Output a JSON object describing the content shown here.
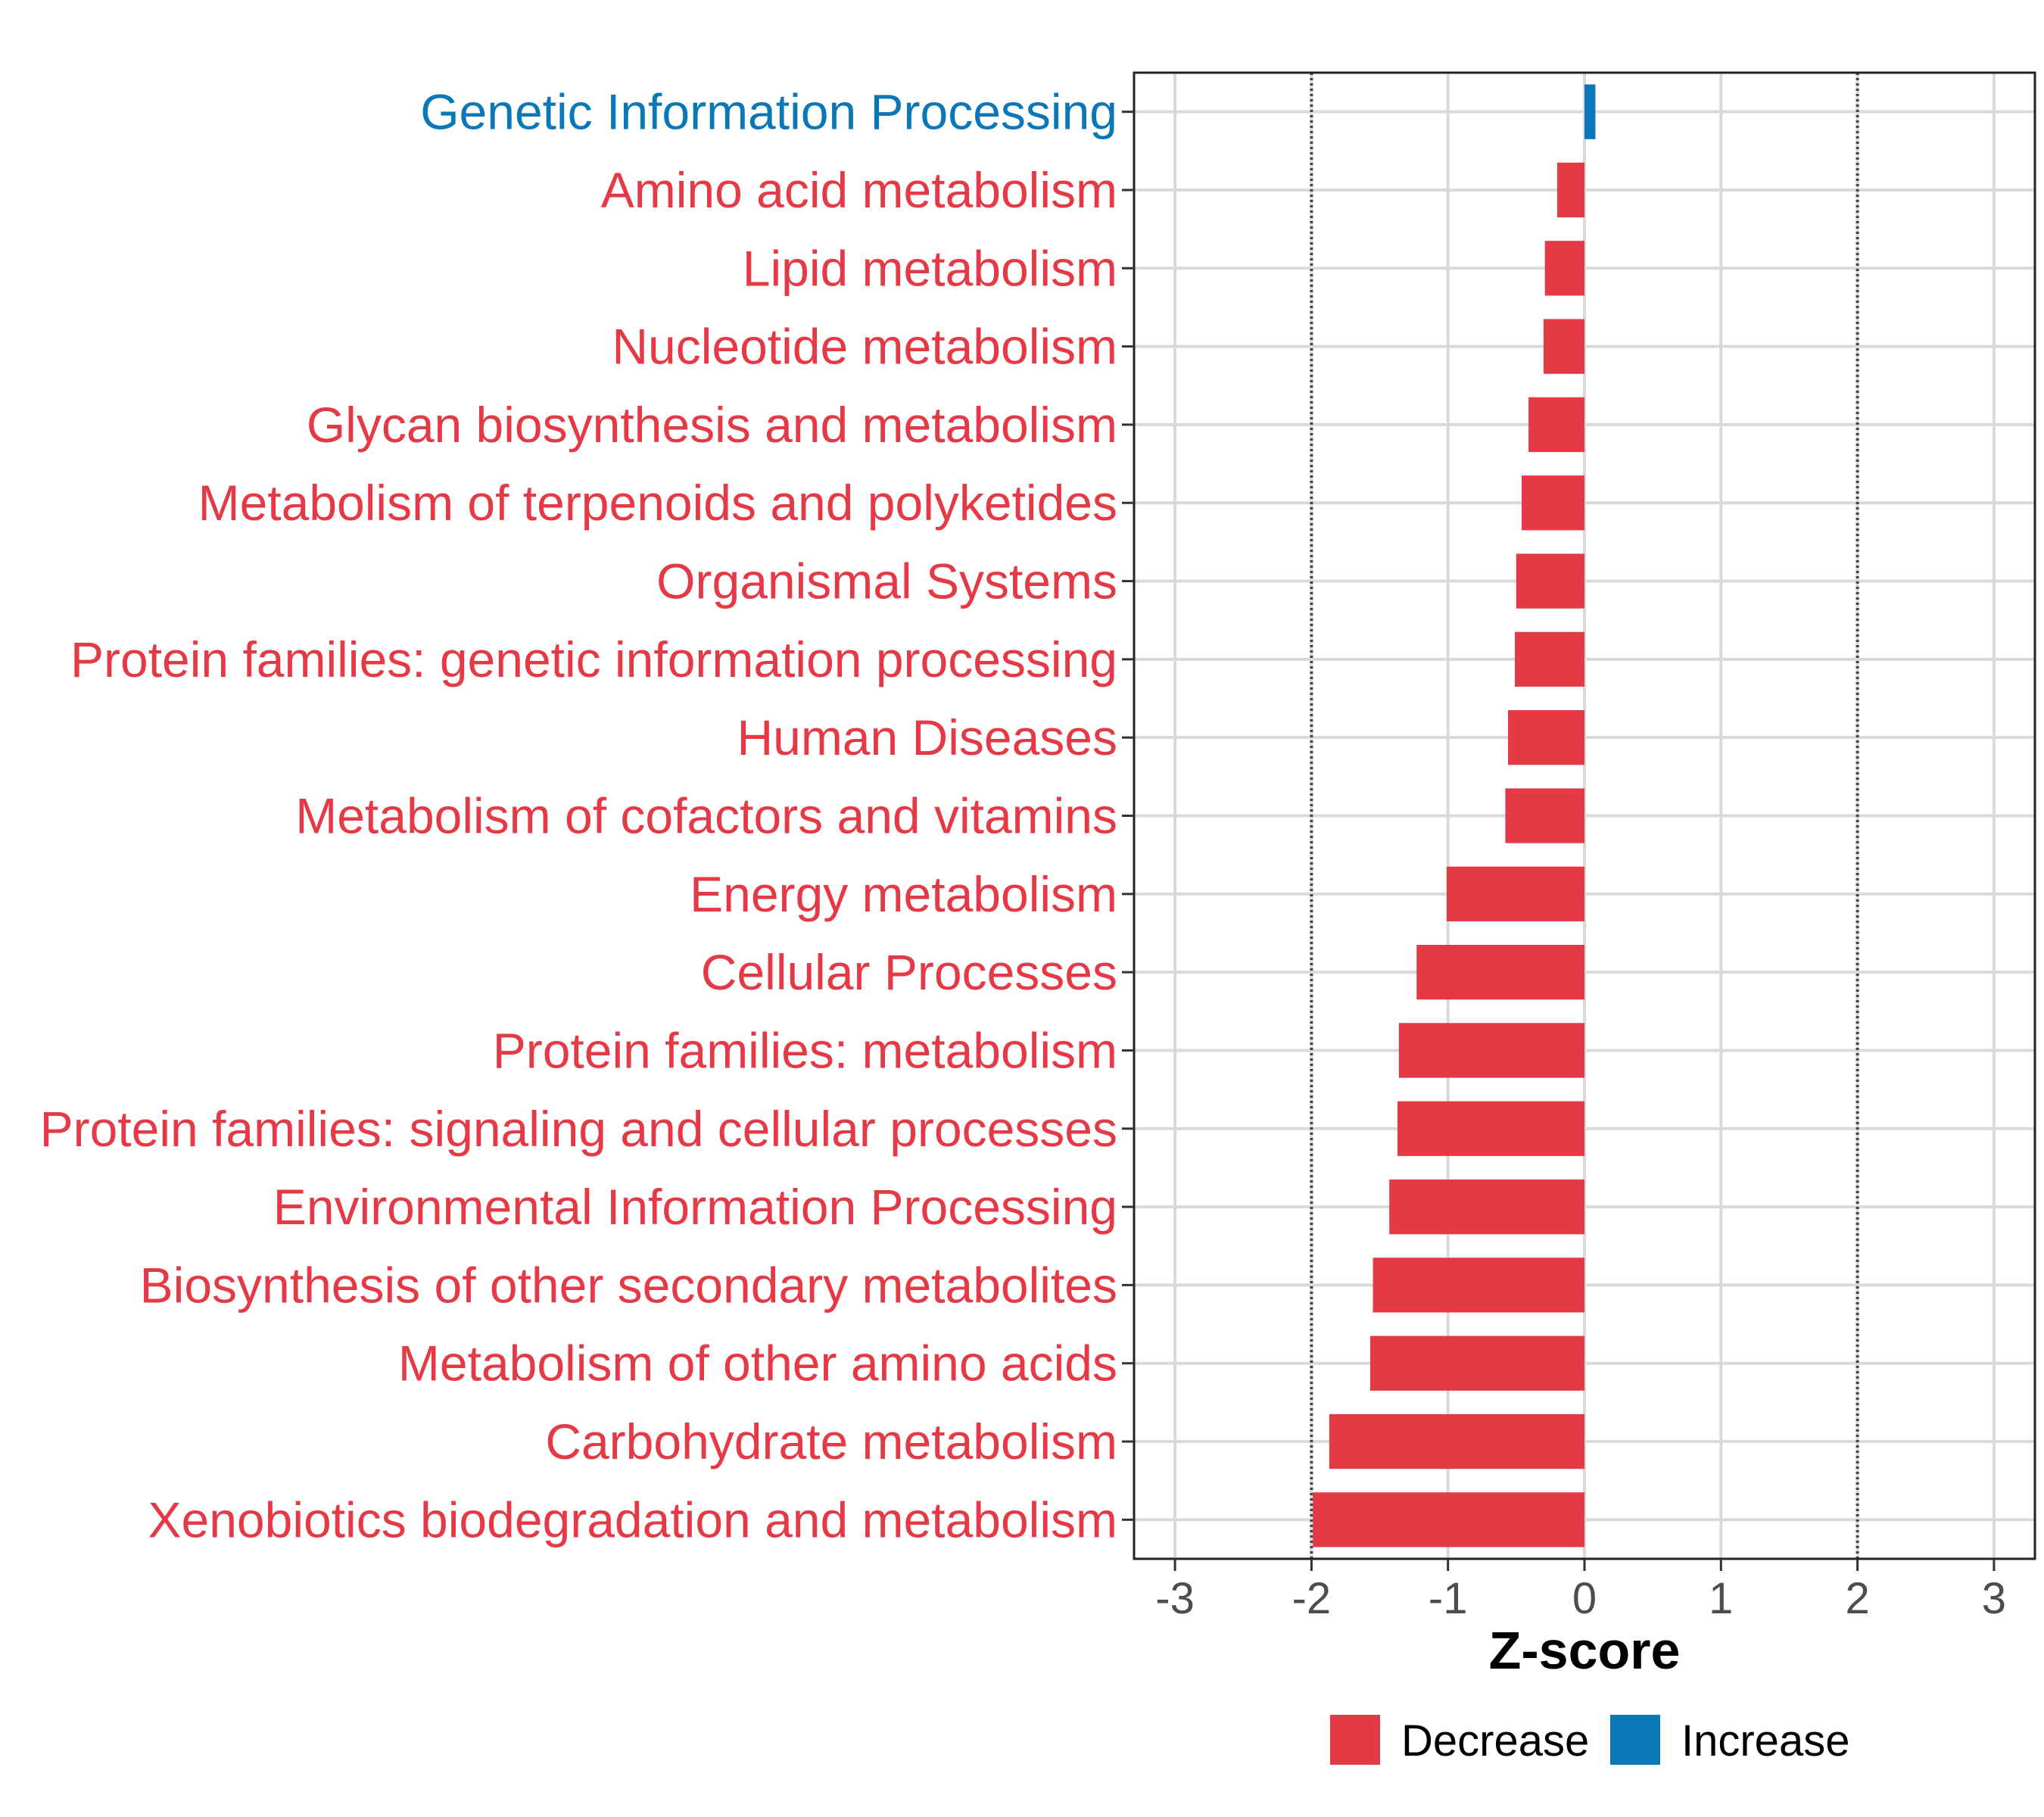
{
  "chart_data": {
    "type": "bar",
    "orientation": "horizontal",
    "title": "",
    "xlabel": "Z-score",
    "ylabel": "",
    "xlim": [
      -3.3,
      3.3
    ],
    "xticks": [
      -3,
      -2,
      -1,
      0,
      1,
      2,
      3
    ],
    "xtick_labels": [
      "-3",
      "-2",
      "-1",
      "0",
      "1",
      "2",
      "3"
    ],
    "reference_lines": [
      -2,
      2
    ],
    "grid": true,
    "categories": [
      "Genetic Information Processing",
      "Amino acid metabolism",
      "Lipid metabolism",
      "Nucleotide metabolism",
      "Glycan biosynthesis and metabolism",
      "Metabolism of terpenoids and polyketides",
      "Organismal Systems",
      "Protein families: genetic information processing",
      "Human Diseases",
      "Metabolism of cofactors and vitamins",
      "Energy metabolism",
      "Cellular Processes",
      "Protein families: metabolism",
      "Protein families: signaling and cellular processes",
      "Environmental Information Processing",
      "Biosynthesis of other secondary metabolites",
      "Metabolism of other amino acids",
      "Carbohydrate metabolism",
      "Xenobiotics biodegradation and metabolism"
    ],
    "values": [
      0.08,
      -0.2,
      -0.29,
      -0.3,
      -0.41,
      -0.46,
      -0.5,
      -0.51,
      -0.56,
      -0.58,
      -1.01,
      -1.23,
      -1.36,
      -1.37,
      -1.43,
      -1.55,
      -1.57,
      -1.87,
      -1.99
    ],
    "groups": [
      "Increase",
      "Decrease",
      "Decrease",
      "Decrease",
      "Decrease",
      "Decrease",
      "Decrease",
      "Decrease",
      "Decrease",
      "Decrease",
      "Decrease",
      "Decrease",
      "Decrease",
      "Decrease",
      "Decrease",
      "Decrease",
      "Decrease",
      "Decrease",
      "Decrease"
    ],
    "legend": {
      "position": "bottom",
      "entries": [
        {
          "label": "Decrease",
          "color": "#e63946"
        },
        {
          "label": "Increase",
          "color": "#0a78b8"
        }
      ]
    },
    "colors": {
      "Decrease": "#e63946",
      "Increase": "#0a78b8"
    }
  }
}
